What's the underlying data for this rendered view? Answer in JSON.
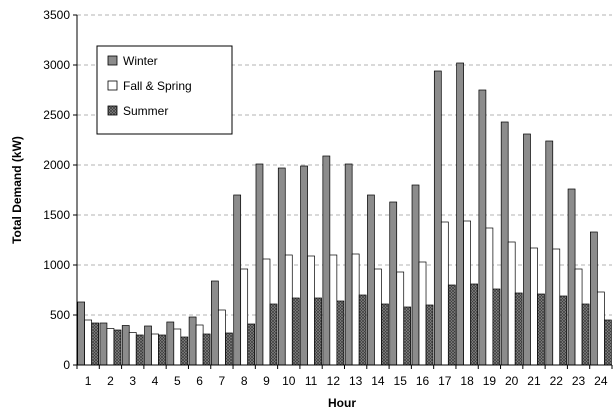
{
  "chart_data": {
    "type": "bar",
    "title": "",
    "xlabel": "Hour",
    "ylabel": "Total Demand (kW)",
    "ylim": [
      0,
      3500
    ],
    "yticks": [
      0,
      500,
      1000,
      1500,
      2000,
      2500,
      3000,
      3500
    ],
    "grid": "horizontal dashed",
    "legend_position": "top-left",
    "categories": [
      "1",
      "2",
      "3",
      "4",
      "5",
      "6",
      "7",
      "8",
      "9",
      "10",
      "11",
      "12",
      "13",
      "14",
      "15",
      "16",
      "17",
      "18",
      "19",
      "20",
      "21",
      "22",
      "23",
      "24"
    ],
    "series": [
      {
        "name": "Winter",
        "color": "#8c8c8c",
        "pattern": "solid",
        "values": [
          630,
          420,
          395,
          390,
          430,
          480,
          840,
          1700,
          2010,
          1970,
          1990,
          2090,
          2010,
          1700,
          1630,
          1800,
          2940,
          3020,
          2750,
          2430,
          2310,
          2240,
          1760,
          1330
        ]
      },
      {
        "name": "Fall & Spring",
        "color": "#ffffff",
        "pattern": "solid",
        "values": [
          450,
          365,
          325,
          310,
          360,
          400,
          550,
          960,
          1060,
          1100,
          1090,
          1100,
          1110,
          960,
          930,
          1030,
          1430,
          1440,
          1370,
          1230,
          1170,
          1160,
          960,
          730
        ]
      },
      {
        "name": "Summer",
        "color": "#6e6e6e",
        "pattern": "crosshatch",
        "values": [
          420,
          350,
          300,
          300,
          280,
          310,
          320,
          410,
          610,
          670,
          670,
          640,
          700,
          610,
          580,
          600,
          800,
          810,
          760,
          720,
          710,
          690,
          610,
          450
        ]
      }
    ]
  }
}
